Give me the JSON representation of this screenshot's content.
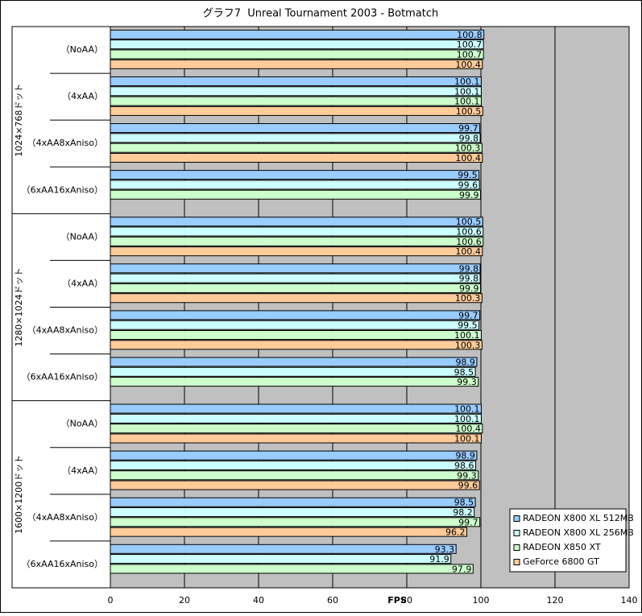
{
  "chart_data": {
    "type": "hbar",
    "title": "グラフ7  Unreal Tournament 2003 - Botmatch",
    "x_label": "FPS",
    "groups": [
      "1024×768ドット",
      "1280×1024ドット",
      "1600×1200ドット"
    ],
    "categories": [
      "（NoAA）",
      "（4xAA）",
      "（4xAA8xAniso）",
      "（6xAA16xAniso）",
      "（NoAA）",
      "（4xAA）",
      "（4xAA8xAniso）",
      "（6xAA16xAniso）",
      "（NoAA）",
      "（4xAA）",
      "（4xAA8xAniso）",
      "（6xAA16xAniso）"
    ],
    "series": [
      {
        "name": "RADEON X800 XL 512MB",
        "color": "#99ccff",
        "values": [
          100.8,
          100.1,
          99.7,
          99.5,
          100.5,
          99.8,
          99.7,
          98.9,
          100.1,
          98.9,
          98.5,
          93.3
        ]
      },
      {
        "name": "RADEON X800 XL 256MB",
        "color": "#ccffff",
        "values": [
          100.7,
          100.1,
          99.8,
          99.6,
          100.6,
          99.8,
          99.5,
          98.5,
          100.1,
          98.6,
          98.2,
          91.9
        ]
      },
      {
        "name": "RADEON X850 XT",
        "color": "#ccffcc",
        "values": [
          100.7,
          100.1,
          100.3,
          99.9,
          100.6,
          99.9,
          100.1,
          99.3,
          100.4,
          99.3,
          99.7,
          97.9
        ]
      },
      {
        "name": "GeForce 6800 GT",
        "color": "#ffcc99",
        "values": [
          100.4,
          100.5,
          100.4,
          null,
          100.4,
          100.3,
          100.3,
          null,
          100.1,
          99.6,
          96.2,
          null
        ]
      }
    ],
    "xlim": [
      0,
      140
    ],
    "xticks": [
      0,
      20,
      40,
      60,
      80,
      100,
      120,
      140
    ],
    "grid": true,
    "plot_color": "#c0c0c0",
    "legend": "bottom-right"
  }
}
